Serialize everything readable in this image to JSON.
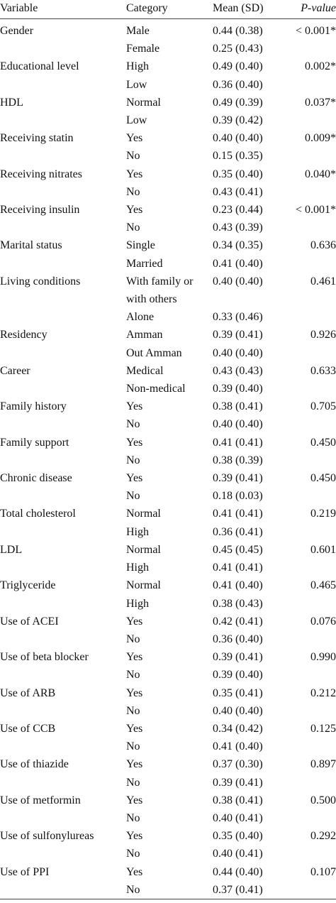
{
  "table": {
    "header": [
      "Variable",
      "Category",
      "Mean (SD)",
      "P-value"
    ],
    "groups": [
      {
        "variable": "Gender",
        "p_value": "< 0.001*",
        "levels": [
          {
            "category": "Male",
            "mean": "0.44 (0.38)"
          },
          {
            "category": "Female",
            "mean": "0.25 (0.43)"
          }
        ]
      },
      {
        "variable": "Educational level",
        "p_value": "0.002*",
        "levels": [
          {
            "category": "High",
            "mean": "0.49 (0.40)"
          },
          {
            "category": "Low",
            "mean": "0.36 (0.40)"
          }
        ]
      },
      {
        "variable": "HDL",
        "p_value": "0.037*",
        "levels": [
          {
            "category": "Normal",
            "mean": "0.49 (0.39)"
          },
          {
            "category": "Low",
            "mean": "0.39 (0.42)"
          }
        ]
      },
      {
        "variable": "Receiving statin",
        "p_value": "0.009*",
        "levels": [
          {
            "category": "Yes",
            "mean": "0.40 (0.40)"
          },
          {
            "category": "No",
            "mean": "0.15 (0.35)"
          }
        ]
      },
      {
        "variable": "Receiving nitrates",
        "p_value": "0.040*",
        "levels": [
          {
            "category": "Yes",
            "mean": "0.35 (0.40)"
          },
          {
            "category": "No",
            "mean": "0.43 (0.41)"
          }
        ]
      },
      {
        "variable": "Receiving insulin",
        "p_value": "< 0.001*",
        "levels": [
          {
            "category": "Yes",
            "mean": "0.23 (0.44)"
          },
          {
            "category": "No",
            "mean": "0.43 (0.39)"
          }
        ]
      },
      {
        "variable": "Marital status",
        "p_value": "0.636",
        "levels": [
          {
            "category": "Single",
            "mean": "0.34 (0.35)"
          },
          {
            "category": "Married",
            "mean": "0.41 (0.40)"
          }
        ]
      },
      {
        "variable": "Living conditions",
        "p_value": "0.461",
        "levels": [
          {
            "category": "With family or with others",
            "mean": "0.40 (0.40)"
          },
          {
            "category": "Alone",
            "mean": "0.33 (0.46)"
          }
        ]
      },
      {
        "variable": "Residency",
        "p_value": "0.926",
        "levels": [
          {
            "category": "Amman",
            "mean": "0.39 (0.41)"
          },
          {
            "category": "Out Amman",
            "mean": "0.40 (0.40)"
          }
        ]
      },
      {
        "variable": "Career",
        "p_value": "0.633",
        "levels": [
          {
            "category": "Medical",
            "mean": "0.43 (0.43)"
          },
          {
            "category": "Non-medical",
            "mean": "0.39 (0.40)"
          }
        ]
      },
      {
        "variable": "Family history",
        "p_value": "0.705",
        "levels": [
          {
            "category": "Yes",
            "mean": "0.38 (0.41)"
          },
          {
            "category": "No",
            "mean": "0.40 (0.40)"
          }
        ]
      },
      {
        "variable": "Family support",
        "p_value": "0.450",
        "levels": [
          {
            "category": "Yes",
            "mean": "0.41 (0.41)"
          },
          {
            "category": "No",
            "mean": "0.38 (0.39)"
          }
        ]
      },
      {
        "variable": "Chronic disease",
        "p_value": "0.450",
        "levels": [
          {
            "category": "Yes",
            "mean": "0.39 (0.41)"
          },
          {
            "category": "No",
            "mean": "0.18 (0.03)"
          }
        ]
      },
      {
        "variable": "Total cholesterol",
        "p_value": "0.219",
        "levels": [
          {
            "category": "Normal",
            "mean": "0.41 (0.41)"
          },
          {
            "category": "High",
            "mean": "0.36 (0.41)"
          }
        ]
      },
      {
        "variable": "LDL",
        "p_value": "0.601",
        "levels": [
          {
            "category": "Normal",
            "mean": "0.45 (0.45)"
          },
          {
            "category": "High",
            "mean": "0.41 (0.41)"
          }
        ]
      },
      {
        "variable": "Triglyceride",
        "p_value": "0.465",
        "levels": [
          {
            "category": "Normal",
            "mean": "0.41 (0.40)"
          },
          {
            "category": "High",
            "mean": "0.38 (0.43)"
          }
        ]
      },
      {
        "variable": "Use of ACEI",
        "p_value": "0.076",
        "levels": [
          {
            "category": "Yes",
            "mean": "0.42 (0.41)"
          },
          {
            "category": "No",
            "mean": "0.36 (0.40)"
          }
        ]
      },
      {
        "variable": "Use of beta blocker",
        "p_value": "0.990",
        "levels": [
          {
            "category": "Yes",
            "mean": "0.39 (0.41)"
          },
          {
            "category": "No",
            "mean": "0.39 (0.40)"
          }
        ]
      },
      {
        "variable": "Use of ARB",
        "p_value": "0.212",
        "levels": [
          {
            "category": "Yes",
            "mean": "0.35 (0.41)"
          },
          {
            "category": "No",
            "mean": "0.40 (0.40)"
          }
        ]
      },
      {
        "variable": "Use of CCB",
        "p_value": "0.125",
        "levels": [
          {
            "category": "Yes",
            "mean": "0.34 (0.42)"
          },
          {
            "category": "No",
            "mean": "0.41 (0.40)"
          }
        ]
      },
      {
        "variable": "Use of thiazide",
        "p_value": "0.897",
        "levels": [
          {
            "category": "Yes",
            "mean": "0.37 (0.30)"
          },
          {
            "category": "No",
            "mean": "0.39 (0.41)"
          }
        ]
      },
      {
        "variable": "Use of metformin",
        "p_value": "0.500",
        "levels": [
          {
            "category": "Yes",
            "mean": "0.38 (0.41)"
          },
          {
            "category": "No",
            "mean": "0.40 (0.41)"
          }
        ]
      },
      {
        "variable": "Use of sulfonylureas",
        "p_value": "0.292",
        "levels": [
          {
            "category": "Yes",
            "mean": "0.35 (0.40)"
          },
          {
            "category": "No",
            "mean": "0.40 (0.41)"
          }
        ]
      },
      {
        "variable": "Use of PPI",
        "p_value": "0.107",
        "levels": [
          {
            "category": "Yes",
            "mean": "0.44 (0.40)"
          },
          {
            "category": "No",
            "mean": "0.37 (0.41)"
          }
        ]
      }
    ]
  }
}
